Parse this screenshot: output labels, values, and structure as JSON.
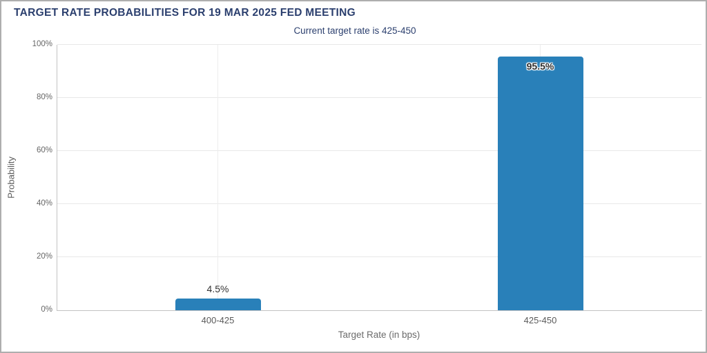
{
  "chart_data": {
    "type": "bar",
    "title": "TARGET RATE PROBABILITIES FOR 19 MAR 2025 FED MEETING",
    "subtitle": "Current target rate is 425-450",
    "xlabel": "Target Rate (in bps)",
    "ylabel": "Probability",
    "categories": [
      "400-425",
      "425-450"
    ],
    "values": [
      4.5,
      95.5
    ],
    "value_labels": [
      "4.5%",
      "95.5%"
    ],
    "ylim": [
      0,
      100
    ],
    "yticks": [
      0,
      20,
      40,
      60,
      80,
      100
    ],
    "ytick_labels": [
      "0%",
      "20%",
      "40%",
      "60%",
      "80%",
      "100%"
    ],
    "grid": "on",
    "legend": "none",
    "bar_color": "#2980b9",
    "title_color": "#2b3f6e"
  }
}
